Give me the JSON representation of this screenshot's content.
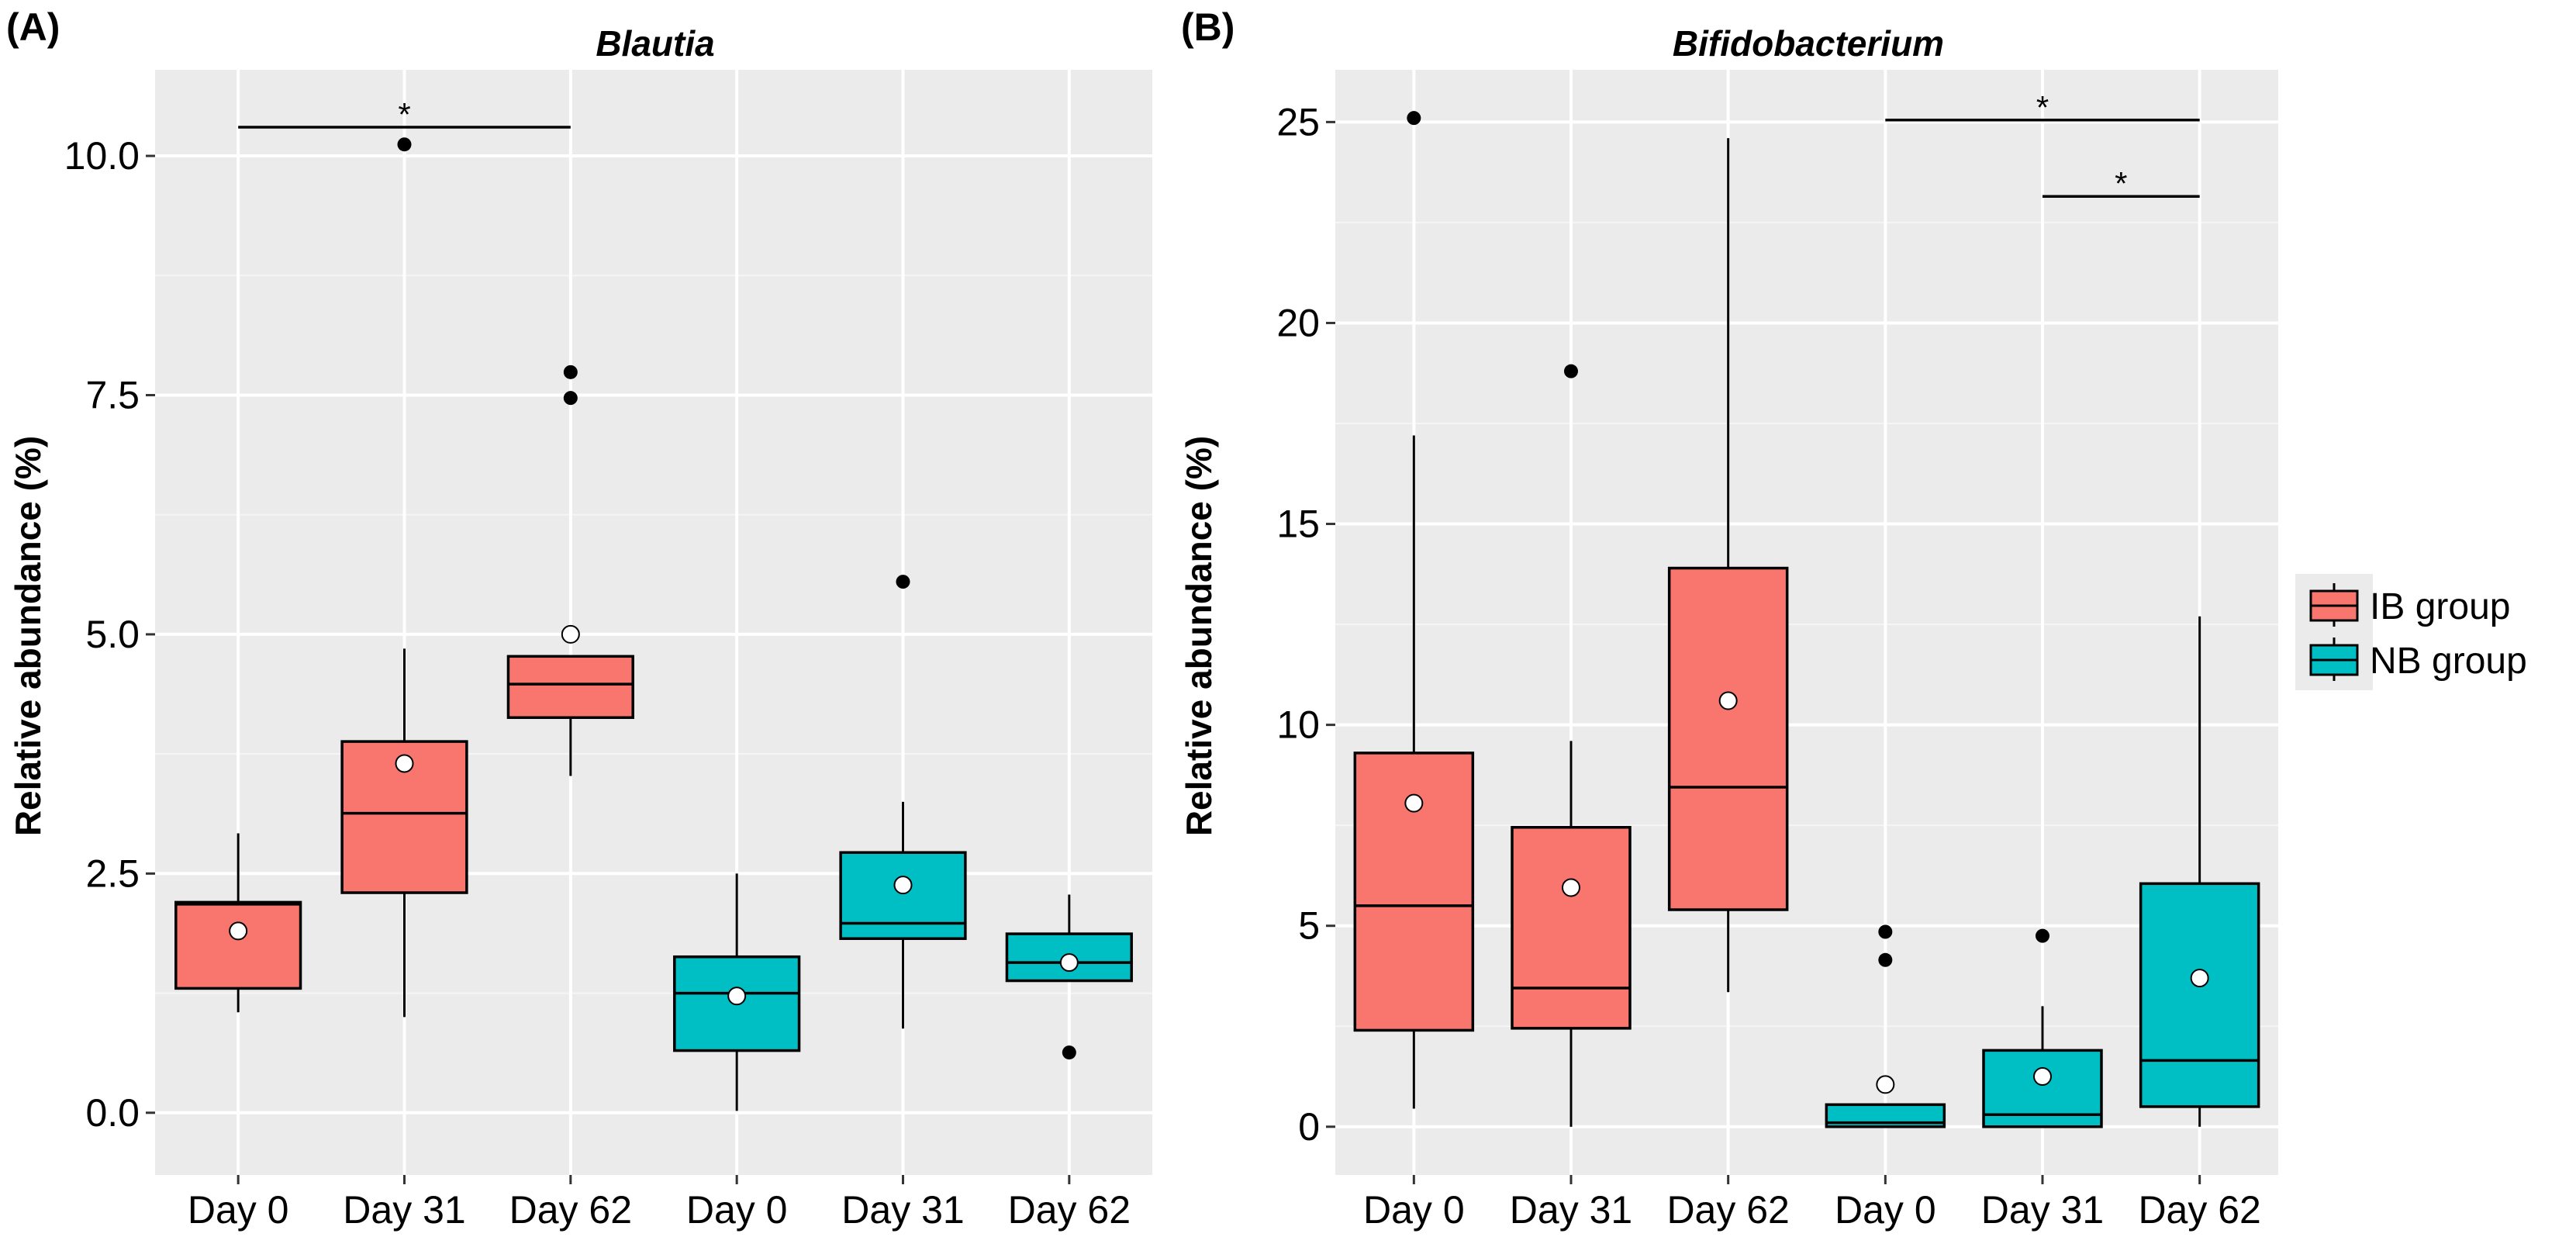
{
  "legend": {
    "items": [
      {
        "label": "IB group",
        "color": "#F8766D"
      },
      {
        "label": "NB group",
        "color": "#00BFC4"
      }
    ]
  },
  "chart_data": [
    {
      "type": "box",
      "panel_label": "(A)",
      "title": "Blautia",
      "ylabel": "Relative abundance (%)",
      "xlabel": "",
      "ylim": [
        -0.65,
        10.9
      ],
      "yticks": [
        0.0,
        2.5,
        5.0,
        7.5,
        10.0
      ],
      "ytick_labels": [
        "0.0",
        "2.5",
        "5.0",
        "7.5",
        "10.0"
      ],
      "categories": [
        "Day 0",
        "Day 31",
        "Day 62",
        "Day 0",
        "Day 31",
        "Day 62"
      ],
      "boxes": [
        {
          "group": "IB group",
          "label": "Day 0",
          "whisker_low": 1.05,
          "q1": 1.3,
          "median": 2.18,
          "q3": 2.2,
          "whisker_high": 2.92,
          "mean": 1.9,
          "outliers": []
        },
        {
          "group": "IB group",
          "label": "Day 31",
          "whisker_low": 1.0,
          "q1": 2.3,
          "median": 3.13,
          "q3": 3.88,
          "whisker_high": 4.85,
          "mean": 3.65,
          "outliers": [
            10.12
          ]
        },
        {
          "group": "IB group",
          "label": "Day 62",
          "whisker_low": 3.52,
          "q1": 4.13,
          "median": 4.48,
          "q3": 4.77,
          "whisker_high": 4.77,
          "mean": 5.0,
          "outliers": [
            7.74,
            7.47
          ]
        },
        {
          "group": "NB group",
          "label": "Day 0",
          "whisker_low": 0.02,
          "q1": 0.65,
          "median": 1.25,
          "q3": 1.63,
          "whisker_high": 2.5,
          "mean": 1.22,
          "outliers": []
        },
        {
          "group": "NB group",
          "label": "Day 31",
          "whisker_low": 0.88,
          "q1": 1.82,
          "median": 1.98,
          "q3": 2.72,
          "whisker_high": 3.25,
          "mean": 2.38,
          "outliers": [
            5.55
          ]
        },
        {
          "group": "NB group",
          "label": "Day 62",
          "whisker_low": 1.38,
          "q1": 1.38,
          "median": 1.57,
          "q3": 1.87,
          "whisker_high": 2.28,
          "mean": 1.57,
          "outliers": [
            0.63
          ]
        }
      ],
      "significance": [
        {
          "from": 0,
          "to": 2,
          "y": 10.3,
          "label": "*"
        }
      ]
    },
    {
      "type": "box",
      "panel_label": "(B)",
      "title": "Bifidobacterium",
      "ylabel": "Relative abundance (%)",
      "xlabel": "",
      "ylim": [
        -1.2,
        26.3
      ],
      "yticks": [
        0,
        5,
        10,
        15,
        20,
        25
      ],
      "ytick_labels": [
        "0",
        "5",
        "10",
        "15",
        "20",
        "25"
      ],
      "categories": [
        "Day 0",
        "Day 31",
        "Day 62",
        "Day 0",
        "Day 31",
        "Day 62"
      ],
      "boxes": [
        {
          "group": "IB group",
          "label": "Day 0",
          "whisker_low": 0.45,
          "q1": 2.4,
          "median": 5.5,
          "q3": 9.3,
          "whisker_high": 17.2,
          "mean": 8.05,
          "outliers": [
            25.1
          ]
        },
        {
          "group": "IB group",
          "label": "Day 31",
          "whisker_low": 0.0,
          "q1": 2.45,
          "median": 3.45,
          "q3": 7.45,
          "whisker_high": 9.6,
          "mean": 5.95,
          "outliers": [
            18.8
          ]
        },
        {
          "group": "IB group",
          "label": "Day 62",
          "whisker_low": 3.35,
          "q1": 5.4,
          "median": 8.45,
          "q3": 13.9,
          "whisker_high": 24.6,
          "mean": 10.6,
          "outliers": []
        },
        {
          "group": "NB group",
          "label": "Day 0",
          "whisker_low": 0.0,
          "q1": 0.0,
          "median": 0.1,
          "q3": 0.55,
          "whisker_high": 0.55,
          "mean": 1.05,
          "outliers": [
            4.85,
            4.15
          ]
        },
        {
          "group": "NB group",
          "label": "Day 31",
          "whisker_low": 0.0,
          "q1": 0.0,
          "median": 0.3,
          "q3": 1.9,
          "whisker_high": 3.0,
          "mean": 1.25,
          "outliers": [
            4.75
          ]
        },
        {
          "group": "NB group",
          "label": "Day 62",
          "whisker_low": 0.0,
          "q1": 0.5,
          "median": 1.65,
          "q3": 6.05,
          "whisker_high": 12.7,
          "mean": 3.7,
          "outliers": []
        }
      ],
      "significance": [
        {
          "from": 3,
          "to": 5,
          "y": 25.05,
          "label": "*"
        },
        {
          "from": 4,
          "to": 5,
          "y": 23.15,
          "label": "*"
        }
      ]
    }
  ]
}
